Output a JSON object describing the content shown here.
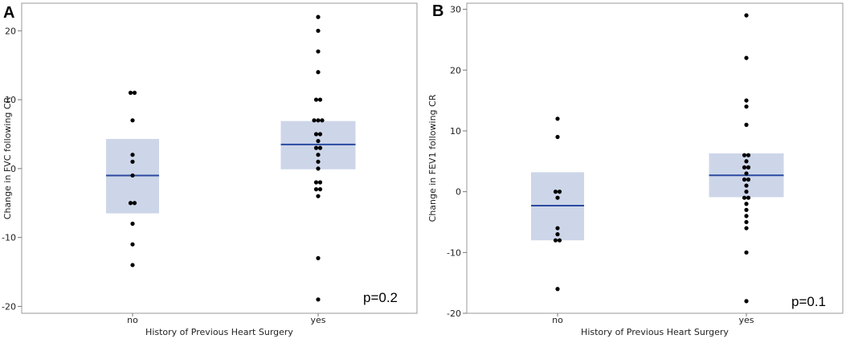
{
  "chart_data": [
    {
      "panel": "A",
      "type": "scatter",
      "xlabel": "History of Previous Heart Surgery",
      "ylabel": "Change in FVC following CR",
      "categories": [
        "no",
        "yes"
      ],
      "ylim": [
        -21,
        24
      ],
      "yticks": [
        -20,
        -10,
        0,
        10,
        20
      ],
      "annotation": "p=0.2",
      "box_color": "#cdd6e9",
      "mean_color": "#2a4aa0",
      "groups": [
        {
          "name": "no",
          "mean": -1,
          "box": [
            -6.5,
            4.3
          ],
          "points": [
            11,
            11,
            7,
            2,
            1,
            -1,
            -5,
            -5,
            -8,
            -11,
            -14
          ]
        },
        {
          "name": "yes",
          "mean": 3.5,
          "box": [
            -0.1,
            6.9
          ],
          "points": [
            22,
            20,
            17,
            14,
            10,
            10,
            7,
            7,
            7,
            5,
            5,
            4,
            3,
            3,
            2,
            1,
            0,
            -2,
            -2,
            -3,
            -3,
            -4,
            -13,
            -19
          ]
        }
      ]
    },
    {
      "panel": "B",
      "type": "scatter",
      "xlabel": "History of Previous Heart Surgery",
      "ylabel": "Change in FEV1 following CR",
      "categories": [
        "no",
        "yes"
      ],
      "ylim": [
        -20,
        31
      ],
      "yticks": [
        -20,
        -10,
        0,
        10,
        20,
        30
      ],
      "annotation": "p=0.1",
      "box_color": "#cdd6e9",
      "mean_color": "#2a4aa0",
      "groups": [
        {
          "name": "no",
          "mean": -2.3,
          "box": [
            -8,
            3.2
          ],
          "points": [
            12,
            9,
            0,
            0,
            -1,
            -6,
            -7,
            -8,
            -8,
            -16
          ]
        },
        {
          "name": "yes",
          "mean": 2.7,
          "box": [
            -0.9,
            6.3
          ],
          "points": [
            29,
            22,
            15,
            14,
            11,
            6,
            6,
            5,
            4,
            4,
            3,
            2,
            2,
            1,
            0,
            -1,
            -1,
            -2,
            -3,
            -4,
            -5,
            -6,
            -10,
            -18
          ]
        }
      ]
    }
  ]
}
